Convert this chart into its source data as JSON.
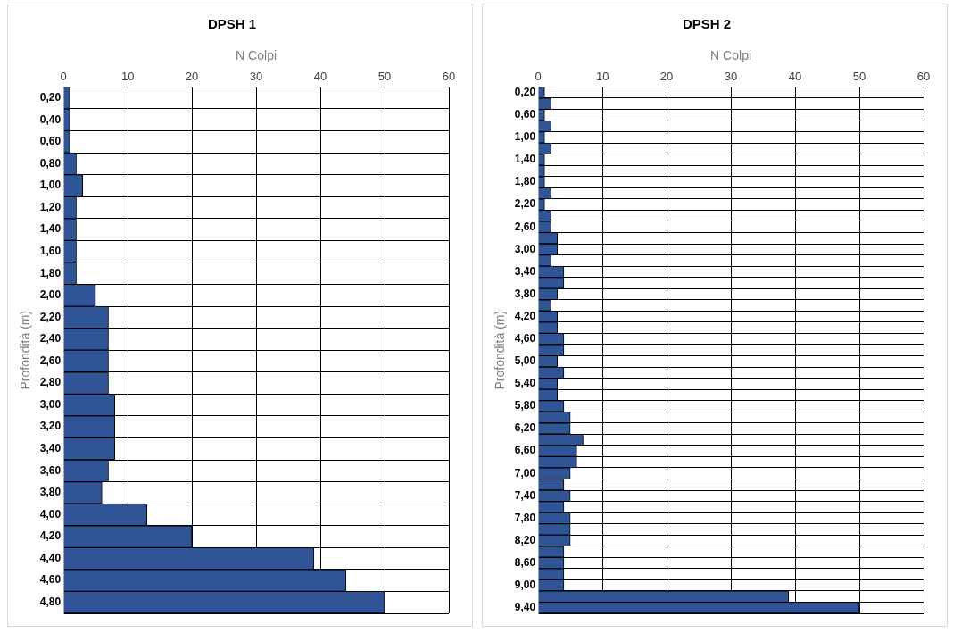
{
  "chart_data": [
    {
      "type": "bar",
      "orientation": "horizontal",
      "title": "DPSH 1",
      "xlabel": "N Colpi",
      "ylabel": "Profondità (m)",
      "categories": [
        "0,20",
        "0,40",
        "0,60",
        "0,80",
        "1,00",
        "1,20",
        "1,40",
        "1,60",
        "1,80",
        "2,00",
        "2,20",
        "2,40",
        "2,60",
        "2,80",
        "3,00",
        "3,20",
        "3,40",
        "3,60",
        "3,80",
        "4,00",
        "4,20",
        "4,40",
        "4,60",
        "4,80"
      ],
      "values": [
        1,
        1,
        1,
        2,
        3,
        2,
        2,
        2,
        2,
        5,
        7,
        7,
        7,
        7,
        8,
        8,
        8,
        7,
        6,
        13,
        20,
        39,
        44,
        50
      ],
      "color": "#2f5597",
      "xlim": [
        0,
        60
      ],
      "xticks": [
        0,
        10,
        20,
        30,
        40,
        50,
        60
      ],
      "grid": true,
      "legend": false
    },
    {
      "type": "bar",
      "orientation": "horizontal",
      "title": "DPSH 2",
      "xlabel": "N Colpi",
      "ylabel": "Profondità (m)",
      "categories": [
        "0,20",
        null,
        "0,60",
        null,
        "1,00",
        null,
        "1,40",
        null,
        "1,80",
        null,
        "2,20",
        null,
        "2,60",
        null,
        "3,00",
        null,
        "3,40",
        null,
        "3,80",
        null,
        "4,20",
        null,
        "4,60",
        null,
        "5,00",
        null,
        "5,40",
        null,
        "5,80",
        null,
        "6,20",
        null,
        "6,60",
        null,
        "7,00",
        null,
        "7,40",
        null,
        "7,80",
        null,
        "8,20",
        null,
        "8,60",
        null,
        "9,00",
        null,
        "9,40"
      ],
      "values": [
        1,
        2,
        1,
        2,
        1,
        2,
        1,
        1,
        1,
        2,
        1,
        2,
        2,
        3,
        3,
        2,
        4,
        4,
        3,
        2,
        3,
        3,
        4,
        4,
        3,
        4,
        3,
        3,
        4,
        5,
        5,
        7,
        6,
        6,
        5,
        4,
        5,
        4,
        5,
        5,
        5,
        4,
        4,
        4,
        4,
        39,
        50
      ],
      "color": "#2f5597",
      "xlim": [
        0,
        60
      ],
      "xticks": [
        0,
        10,
        20,
        30,
        40,
        50,
        60
      ],
      "grid": true,
      "legend": false
    }
  ]
}
